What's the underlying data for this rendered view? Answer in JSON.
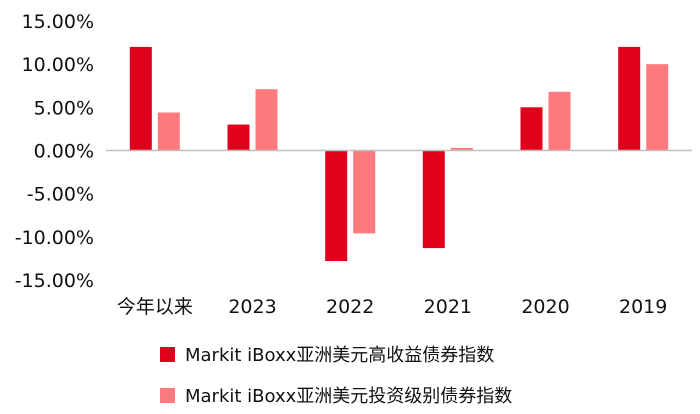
{
  "chart_data": {
    "type": "bar",
    "categories": [
      "今年以来",
      "2023",
      "2022",
      "2021",
      "2020",
      "2019"
    ],
    "series": [
      {
        "name": "Markit iBoxx亚洲美元高收益债券指数",
        "values": [
          12.0,
          3.0,
          -12.8,
          -11.3,
          5.0,
          12.0
        ],
        "color": "#e0001b"
      },
      {
        "name": "Markit iBoxx亚洲美元投资级别债券指数",
        "values": [
          4.4,
          7.1,
          -9.6,
          0.3,
          6.8,
          10.0
        ],
        "color": "#ff7a7f"
      }
    ],
    "y_ticks": [
      "15.00%",
      "10.00%",
      "5.00%",
      "0.00%",
      "-5.00%",
      "-10.00%",
      "-15.00%"
    ],
    "ylim": [
      -15,
      15
    ],
    "grid": false,
    "legend_position": "bottom"
  }
}
